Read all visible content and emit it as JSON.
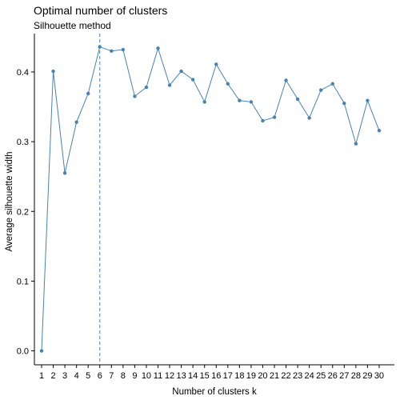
{
  "chart_data": {
    "type": "line",
    "title": "Optimal number of clusters",
    "subtitle": "Silhouette method",
    "xlabel": "Number of clusters k",
    "ylabel": "Average silhouette width",
    "categories": [
      "1",
      "2",
      "3",
      "4",
      "5",
      "6",
      "7",
      "8",
      "9",
      "10",
      "11",
      "12",
      "13",
      "14",
      "15",
      "16",
      "17",
      "18",
      "19",
      "20",
      "21",
      "22",
      "23",
      "24",
      "25",
      "26",
      "27",
      "28",
      "29",
      "30"
    ],
    "values": [
      0.0,
      0.401,
      0.255,
      0.328,
      0.369,
      0.436,
      0.43,
      0.432,
      0.365,
      0.378,
      0.434,
      0.381,
      0.401,
      0.389,
      0.357,
      0.411,
      0.383,
      0.359,
      0.357,
      0.33,
      0.335,
      0.388,
      0.361,
      0.334,
      0.374,
      0.383,
      0.355,
      0.297,
      0.359,
      0.316
    ],
    "ylim": [
      -0.02,
      0.455
    ],
    "yticks": [
      "0.0",
      "0.1",
      "0.2",
      "0.3",
      "0.4"
    ],
    "optimal_k": 6,
    "grid": false,
    "legend": "none",
    "colors": {
      "line": "#4682b4",
      "point": "#4682b4",
      "vline": "#4682b4"
    }
  }
}
